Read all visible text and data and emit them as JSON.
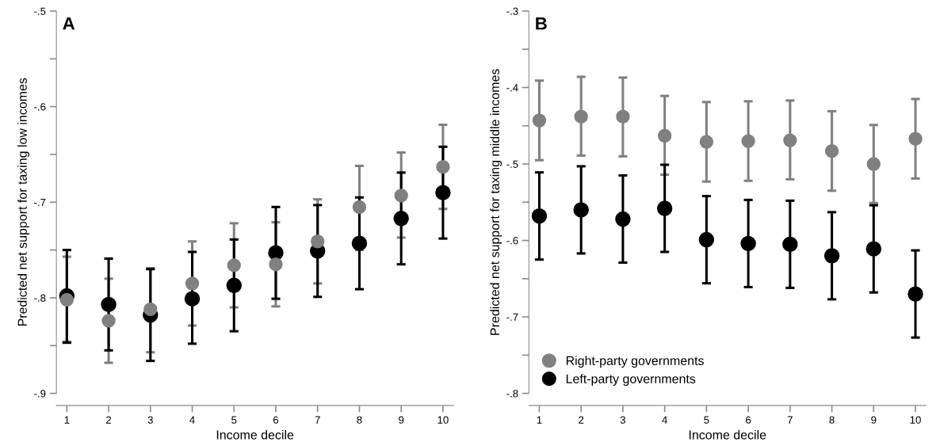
{
  "chart_data": [
    {
      "type": "scatter",
      "title": "A",
      "xlabel": "Income decile",
      "ylabel": "Predicted net support for taxing low incomes",
      "x": [
        1,
        2,
        3,
        4,
        5,
        6,
        7,
        8,
        9,
        10
      ],
      "xlim": [
        0.75,
        10.25
      ],
      "xticks": [
        1,
        2,
        3,
        4,
        5,
        6,
        7,
        8,
        9,
        10
      ],
      "ylim": [
        -0.9,
        -0.5
      ],
      "yticks": [
        {
          "value": -0.9,
          "label": "-.9"
        },
        {
          "value": -0.85,
          "label": null
        },
        {
          "value": -0.8,
          "label": "-.8"
        },
        {
          "value": -0.75,
          "label": null
        },
        {
          "value": -0.7,
          "label": "-.7"
        },
        {
          "value": -0.65,
          "label": null
        },
        {
          "value": -0.6,
          "label": "-.6"
        },
        {
          "value": -0.55,
          "label": null
        },
        {
          "value": -0.5,
          "label": "-.5"
        }
      ],
      "grid": false,
      "legend": false,
      "marker": "circle",
      "series": [
        {
          "color": "#808080",
          "values": [
            -0.802,
            -0.824,
            -0.812,
            -0.785,
            -0.766,
            -0.765,
            -0.741,
            -0.705,
            -0.693,
            -0.663
          ],
          "errors": [
            [
              -0.846,
              -0.757
            ],
            [
              -0.868,
              -0.78
            ],
            [
              -0.857,
              -0.769
            ],
            [
              -0.829,
              -0.741
            ],
            [
              -0.81,
              -0.722
            ],
            [
              -0.809,
              -0.721
            ],
            [
              -0.785,
              -0.697
            ],
            [
              -0.75,
              -0.662
            ],
            [
              -0.737,
              -0.648
            ],
            [
              -0.707,
              -0.619
            ]
          ]
        },
        {
          "color": "#000000",
          "values": [
            -0.798,
            -0.807,
            -0.818,
            -0.801,
            -0.787,
            -0.753,
            -0.751,
            -0.743,
            -0.717,
            -0.69
          ],
          "errors": [
            [
              -0.847,
              -0.75
            ],
            [
              -0.855,
              -0.759
            ],
            [
              -0.866,
              -0.77
            ],
            [
              -0.848,
              -0.752
            ],
            [
              -0.835,
              -0.739
            ],
            [
              -0.801,
              -0.705
            ],
            [
              -0.799,
              -0.703
            ],
            [
              -0.791,
              -0.695
            ],
            [
              -0.765,
              -0.669
            ],
            [
              -0.738,
              -0.642
            ]
          ]
        }
      ]
    },
    {
      "type": "scatter",
      "title": "B",
      "xlabel": "Income decile",
      "ylabel": "Predicted net support for taxing middle incomes",
      "x": [
        1,
        2,
        3,
        4,
        5,
        6,
        7,
        8,
        9,
        10
      ],
      "xlim": [
        0.75,
        10.25
      ],
      "xticks": [
        1,
        2,
        3,
        4,
        5,
        6,
        7,
        8,
        9,
        10
      ],
      "ylim": [
        -0.8,
        -0.3
      ],
      "yticks": [
        {
          "value": -0.8,
          "label": "-.8"
        },
        {
          "value": -0.75,
          "label": null
        },
        {
          "value": -0.7,
          "label": "-.7"
        },
        {
          "value": -0.65,
          "label": null
        },
        {
          "value": -0.6,
          "label": "-.6"
        },
        {
          "value": -0.55,
          "label": null
        },
        {
          "value": -0.5,
          "label": "-.5"
        },
        {
          "value": -0.45,
          "label": null
        },
        {
          "value": -0.4,
          "label": "-.4"
        },
        {
          "value": -0.35,
          "label": null
        },
        {
          "value": -0.3,
          "label": "-.3"
        }
      ],
      "grid": false,
      "legend": "bottom left",
      "marker": "circle",
      "series": [
        {
          "name": "Right-party governments",
          "color": "#808080",
          "values": [
            -0.443,
            -0.438,
            -0.438,
            -0.463,
            -0.471,
            -0.47,
            -0.469,
            -0.483,
            -0.5,
            -0.467
          ],
          "errors": [
            [
              -0.495,
              -0.391
            ],
            [
              -0.489,
              -0.386
            ],
            [
              -0.49,
              -0.387
            ],
            [
              -0.514,
              -0.411
            ],
            [
              -0.523,
              -0.419
            ],
            [
              -0.522,
              -0.418
            ],
            [
              -0.52,
              -0.417
            ],
            [
              -0.535,
              -0.431
            ],
            [
              -0.551,
              -0.449
            ],
            [
              -0.519,
              -0.415
            ]
          ]
        },
        {
          "name": "Left-party governments",
          "color": "#000000",
          "values": [
            -0.568,
            -0.56,
            -0.572,
            -0.558,
            -0.599,
            -0.604,
            -0.605,
            -0.62,
            -0.611,
            -0.67
          ],
          "errors": [
            [
              -0.625,
              -0.511
            ],
            [
              -0.617,
              -0.503
            ],
            [
              -0.629,
              -0.515
            ],
            [
              -0.615,
              -0.501
            ],
            [
              -0.656,
              -0.542
            ],
            [
              -0.661,
              -0.547
            ],
            [
              -0.662,
              -0.548
            ],
            [
              -0.677,
              -0.563
            ],
            [
              -0.668,
              -0.554
            ],
            [
              -0.727,
              -0.613
            ]
          ]
        }
      ]
    }
  ]
}
